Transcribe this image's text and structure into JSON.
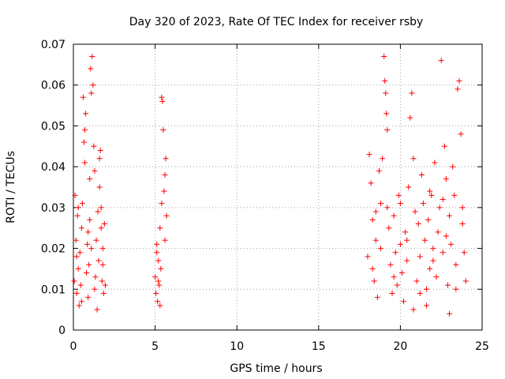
{
  "chart_data": {
    "type": "scatter",
    "title": "Day 320 of 2023, Rate Of TEC Index for receiver rsby",
    "xlabel": "GPS time / hours",
    "ylabel": "ROTI / TECUs",
    "xlim": [
      0,
      25
    ],
    "ylim": [
      0,
      0.07
    ],
    "xticks": [
      "0",
      "5",
      "10",
      "15",
      "20",
      "25"
    ],
    "yticks": [
      "0",
      "0.01",
      "0.02",
      "0.03",
      "0.04",
      "0.05",
      "0.06",
      "0.07"
    ],
    "grid": true,
    "marker": "+",
    "series_color": "#ff0000",
    "series": [
      {
        "name": "ROTI",
        "points": [
          [
            0.05,
            0.012
          ],
          [
            0.1,
            0.033
          ],
          [
            0.15,
            0.022
          ],
          [
            0.2,
            0.009
          ],
          [
            0.25,
            0.028
          ],
          [
            0.3,
            0.015
          ],
          [
            0.35,
            0.006
          ],
          [
            0.4,
            0.019
          ],
          [
            0.45,
            0.011
          ],
          [
            0.5,
            0.025
          ],
          [
            0.55,
            0.031
          ],
          [
            0.6,
            0.057
          ],
          [
            0.65,
            0.046
          ],
          [
            0.7,
            0.041
          ],
          [
            0.75,
            0.053
          ],
          [
            0.8,
            0.014
          ],
          [
            0.85,
            0.021
          ],
          [
            0.9,
            0.008
          ],
          [
            0.95,
            0.016
          ],
          [
            1.0,
            0.027
          ],
          [
            1.05,
            0.064
          ],
          [
            1.1,
            0.058
          ],
          [
            1.15,
            0.067
          ],
          [
            1.2,
            0.06
          ],
          [
            1.25,
            0.045
          ],
          [
            1.3,
            0.039
          ],
          [
            1.35,
            0.013
          ],
          [
            1.4,
            0.022
          ],
          [
            1.45,
            0.005
          ],
          [
            1.5,
            0.029
          ],
          [
            1.55,
            0.017
          ],
          [
            1.6,
            0.035
          ],
          [
            1.65,
            0.044
          ],
          [
            1.7,
            0.03
          ],
          [
            1.75,
            0.012
          ],
          [
            1.8,
            0.02
          ],
          [
            1.85,
            0.009
          ],
          [
            1.9,
            0.026
          ],
          [
            1.95,
            0.011
          ],
          [
            0.3,
            0.03
          ],
          [
            0.7,
            0.049
          ],
          [
            1.0,
            0.037
          ],
          [
            1.6,
            0.042
          ],
          [
            0.2,
            0.018
          ],
          [
            0.9,
            0.024
          ],
          [
            1.3,
            0.01
          ],
          [
            1.8,
            0.016
          ],
          [
            0.5,
            0.007
          ],
          [
            1.1,
            0.02
          ],
          [
            1.7,
            0.025
          ],
          [
            5.0,
            0.013
          ],
          [
            5.05,
            0.009
          ],
          [
            5.1,
            0.021
          ],
          [
            5.15,
            0.007
          ],
          [
            5.2,
            0.017
          ],
          [
            5.25,
            0.011
          ],
          [
            5.3,
            0.006
          ],
          [
            5.35,
            0.015
          ],
          [
            5.4,
            0.057
          ],
          [
            5.45,
            0.056
          ],
          [
            5.5,
            0.049
          ],
          [
            5.55,
            0.034
          ],
          [
            5.6,
            0.038
          ],
          [
            5.65,
            0.042
          ],
          [
            5.7,
            0.028
          ],
          [
            5.3,
            0.025
          ],
          [
            5.1,
            0.019
          ],
          [
            5.4,
            0.031
          ],
          [
            5.2,
            0.012
          ],
          [
            5.6,
            0.022
          ],
          [
            18.0,
            0.018
          ],
          [
            18.1,
            0.043
          ],
          [
            18.2,
            0.036
          ],
          [
            18.3,
            0.027
          ],
          [
            18.4,
            0.012
          ],
          [
            18.5,
            0.022
          ],
          [
            18.6,
            0.008
          ],
          [
            18.7,
            0.039
          ],
          [
            18.8,
            0.031
          ],
          [
            18.9,
            0.042
          ],
          [
            19.0,
            0.067
          ],
          [
            19.05,
            0.061
          ],
          [
            19.1,
            0.058
          ],
          [
            19.15,
            0.053
          ],
          [
            19.2,
            0.049
          ],
          [
            19.3,
            0.025
          ],
          [
            19.4,
            0.016
          ],
          [
            19.5,
            0.009
          ],
          [
            19.6,
            0.028
          ],
          [
            19.7,
            0.019
          ],
          [
            19.8,
            0.011
          ],
          [
            19.9,
            0.033
          ],
          [
            20.0,
            0.021
          ],
          [
            20.1,
            0.014
          ],
          [
            20.2,
            0.007
          ],
          [
            20.3,
            0.024
          ],
          [
            20.4,
            0.017
          ],
          [
            20.5,
            0.035
          ],
          [
            20.6,
            0.052
          ],
          [
            20.7,
            0.058
          ],
          [
            20.8,
            0.042
          ],
          [
            20.9,
            0.029
          ],
          [
            21.0,
            0.012
          ],
          [
            21.1,
            0.026
          ],
          [
            21.2,
            0.018
          ],
          [
            21.3,
            0.038
          ],
          [
            21.4,
            0.031
          ],
          [
            21.5,
            0.022
          ],
          [
            21.6,
            0.01
          ],
          [
            21.7,
            0.027
          ],
          [
            21.8,
            0.015
          ],
          [
            21.9,
            0.033
          ],
          [
            22.0,
            0.02
          ],
          [
            22.1,
            0.041
          ],
          [
            22.2,
            0.013
          ],
          [
            22.3,
            0.024
          ],
          [
            22.4,
            0.03
          ],
          [
            22.5,
            0.066
          ],
          [
            22.6,
            0.019
          ],
          [
            22.7,
            0.045
          ],
          [
            22.8,
            0.037
          ],
          [
            22.9,
            0.011
          ],
          [
            23.0,
            0.028
          ],
          [
            23.1,
            0.021
          ],
          [
            23.2,
            0.04
          ],
          [
            23.3,
            0.033
          ],
          [
            23.4,
            0.016
          ],
          [
            23.5,
            0.059
          ],
          [
            23.6,
            0.061
          ],
          [
            23.7,
            0.048
          ],
          [
            23.8,
            0.026
          ],
          [
            23.9,
            0.019
          ],
          [
            24.0,
            0.012
          ],
          [
            18.3,
            0.015
          ],
          [
            18.8,
            0.02
          ],
          [
            19.6,
            0.013
          ],
          [
            20.4,
            0.022
          ],
          [
            21.2,
            0.009
          ],
          [
            22.0,
            0.017
          ],
          [
            22.8,
            0.023
          ],
          [
            23.4,
            0.01
          ],
          [
            20.8,
            0.005
          ],
          [
            21.6,
            0.006
          ],
          [
            23.0,
            0.004
          ],
          [
            18.5,
            0.029
          ],
          [
            19.2,
            0.03
          ],
          [
            20.0,
            0.031
          ],
          [
            21.8,
            0.034
          ],
          [
            22.6,
            0.032
          ],
          [
            23.8,
            0.03
          ]
        ]
      }
    ]
  }
}
